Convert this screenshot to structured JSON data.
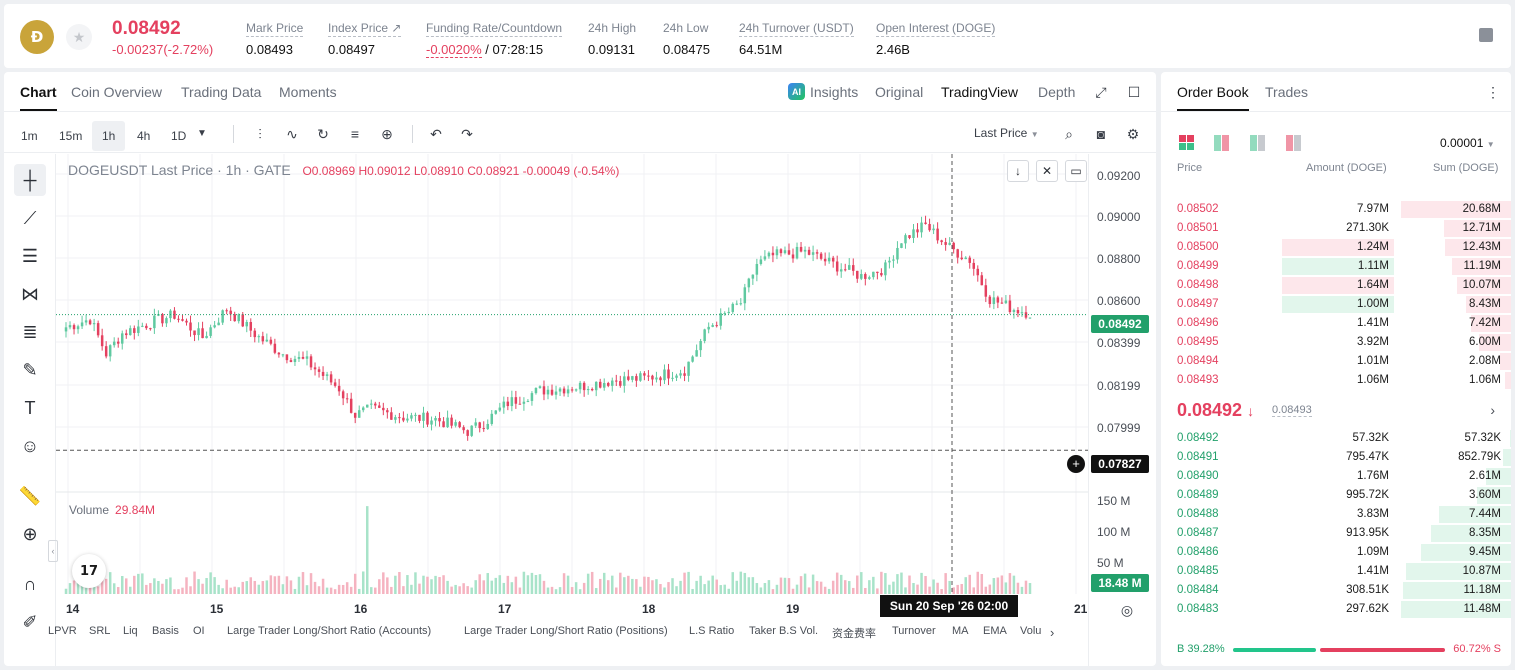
{
  "header": {
    "coin_logo_text": "Ð",
    "last_price": "0.08492",
    "change": "-0.00237(-2.72%)",
    "stats": [
      {
        "label": "Mark Price",
        "value": "0.08493"
      },
      {
        "label": "Index Price ↗",
        "value": "0.08497"
      },
      {
        "label": "Funding Rate/Countdown",
        "value_neg": "-0.0020%",
        "value": " / 07:28:15"
      },
      {
        "label": "24h High",
        "value": "0.09131"
      },
      {
        "label": "24h Low",
        "value": "0.08475"
      },
      {
        "label": "24h Turnover (USDT)",
        "value": "64.51M"
      },
      {
        "label": "Open Interest (DOGE)",
        "value": "2.46B"
      }
    ]
  },
  "chart_tabs": [
    "Chart",
    "Coin Overview",
    "Trading Data",
    "Moments"
  ],
  "chart_right_tabs": {
    "ai_badge": "AI",
    "insights": "Insights",
    "original": "Original",
    "tradingview": "TradingView",
    "depth": "Depth"
  },
  "timeframes": [
    "1m",
    "15m",
    "1h",
    "4h",
    "1D"
  ],
  "selected_timeframe": "1h",
  "price_type": "Last Price",
  "legend": {
    "symbol": "DOGEUSDT Last Price · 1h · GATE",
    "ohlc": "O0.08969 H0.09012 L0.08910 C0.08921 -0.00049 (-0.54%)"
  },
  "volume": {
    "label": "Volume",
    "value": "29.84M"
  },
  "y_ticks": [
    "0.09200",
    "0.09000",
    "0.08800",
    "0.08600",
    "0.08399",
    "0.08199",
    "0.07999"
  ],
  "vol_ticks": [
    "150 M",
    "100 M",
    "50 M"
  ],
  "current_price_tag": "0.08492",
  "crosshair_price_tag": "0.07827",
  "volume_tag": "18.48 M",
  "x_ticks": [
    "14",
    "15",
    "16",
    "17",
    "18",
    "19",
    "21"
  ],
  "crosshair_time": "Sun 20 Sep '26   02:00",
  "indicators": [
    "LPVR",
    "SRL",
    "Liq",
    "Basis",
    "OI",
    "Large Trader Long/Short Ratio (Accounts)",
    "Large Trader Long/Short Ratio (Positions)",
    "L.S Ratio",
    "Taker B.S Vol.",
    "资金费率",
    "Turnover",
    "MA",
    "EMA",
    "Volu"
  ],
  "tv_logo": "17",
  "chart_data": {
    "type": "candlestick",
    "symbol": "DOGEUSDT",
    "interval": "1h",
    "ylim": [
      0.0775,
      0.0922
    ],
    "x_tick_labels": [
      "14",
      "15",
      "16",
      "17",
      "18",
      "19",
      "21"
    ],
    "anchors_close": [
      [
        0,
        0.0843
      ],
      [
        6,
        0.0847
      ],
      [
        10,
        0.083
      ],
      [
        14,
        0.084
      ],
      [
        22,
        0.0846
      ],
      [
        27,
        0.0849
      ],
      [
        34,
        0.0838
      ],
      [
        40,
        0.0852
      ],
      [
        48,
        0.0838
      ],
      [
        54,
        0.083
      ],
      [
        60,
        0.0826
      ],
      [
        68,
        0.0813
      ],
      [
        72,
        0.08
      ],
      [
        76,
        0.0803
      ],
      [
        84,
        0.0799
      ],
      [
        92,
        0.0798
      ],
      [
        100,
        0.0792
      ],
      [
        104,
        0.0796
      ],
      [
        110,
        0.0806
      ],
      [
        118,
        0.0812
      ],
      [
        128,
        0.0814
      ],
      [
        136,
        0.0817
      ],
      [
        144,
        0.0818
      ],
      [
        154,
        0.0822
      ],
      [
        160,
        0.0843
      ],
      [
        168,
        0.0855
      ],
      [
        172,
        0.0874
      ],
      [
        176,
        0.0878
      ],
      [
        184,
        0.088
      ],
      [
        192,
        0.0873
      ],
      [
        198,
        0.0868
      ],
      [
        204,
        0.0872
      ],
      [
        208,
        0.0886
      ],
      [
        214,
        0.0893
      ],
      [
        220,
        0.0882
      ],
      [
        225,
        0.0876
      ],
      [
        230,
        0.0857
      ],
      [
        236,
        0.0852
      ],
      [
        240,
        0.085
      ]
    ],
    "volume_ylim": [
      0,
      160
    ],
    "volume_unit": "M",
    "last_volume": 18.48,
    "volume_spike_index": 75,
    "volume_spike": 148
  },
  "order_book": {
    "tabs": [
      "Order Book",
      "Trades"
    ],
    "precision": "0.00001",
    "headers": {
      "price": "Price",
      "amount": "Amount (DOGE)",
      "sum": "Sum (DOGE)"
    },
    "asks": [
      {
        "price": "0.08502",
        "amount": "7.97M",
        "sum": "20.68M",
        "depth": 1.0
      },
      {
        "price": "0.08501",
        "amount": "271.30K",
        "sum": "12.71M",
        "depth": 0.61
      },
      {
        "price": "0.08500",
        "amount": "1.24M",
        "sum": "12.43M",
        "depth": 0.6,
        "highlight": "red"
      },
      {
        "price": "0.08499",
        "amount": "1.11M",
        "sum": "11.19M",
        "depth": 0.54,
        "highlight": "green"
      },
      {
        "price": "0.08498",
        "amount": "1.64M",
        "sum": "10.07M",
        "depth": 0.49,
        "highlight": "red"
      },
      {
        "price": "0.08497",
        "amount": "1.00M",
        "sum": "8.43M",
        "depth": 0.41,
        "highlight": "green"
      },
      {
        "price": "0.08496",
        "amount": "1.41M",
        "sum": "7.42M",
        "depth": 0.36
      },
      {
        "price": "0.08495",
        "amount": "3.92M",
        "sum": "6.00M",
        "depth": 0.29
      },
      {
        "price": "0.08494",
        "amount": "1.01M",
        "sum": "2.08M",
        "depth": 0.1
      },
      {
        "price": "0.08493",
        "amount": "1.06M",
        "sum": "1.06M",
        "depth": 0.05
      }
    ],
    "mid_price": "0.08492",
    "mid_arrow": "↓",
    "mid_mark": "0.08493",
    "bids": [
      {
        "price": "0.08492",
        "amount": "57.32K",
        "sum": "57.32K",
        "depth": 0.005
      },
      {
        "price": "0.08491",
        "amount": "795.47K",
        "sum": "852.79K",
        "depth": 0.07
      },
      {
        "price": "0.08490",
        "amount": "1.76M",
        "sum": "2.61M",
        "depth": 0.23
      },
      {
        "price": "0.08489",
        "amount": "995.72K",
        "sum": "3.60M",
        "depth": 0.31
      },
      {
        "price": "0.08488",
        "amount": "3.83M",
        "sum": "7.44M",
        "depth": 0.65
      },
      {
        "price": "0.08487",
        "amount": "913.95K",
        "sum": "8.35M",
        "depth": 0.73
      },
      {
        "price": "0.08486",
        "amount": "1.09M",
        "sum": "9.45M",
        "depth": 0.82
      },
      {
        "price": "0.08485",
        "amount": "1.41M",
        "sum": "10.87M",
        "depth": 0.95
      },
      {
        "price": "0.08484",
        "amount": "308.51K",
        "sum": "11.18M",
        "depth": 0.98
      },
      {
        "price": "0.08483",
        "amount": "297.62K",
        "sum": "11.48M",
        "depth": 1.0
      }
    ],
    "buy_ratio_label": "B 39.28%",
    "sell_ratio_label": "60.72% S",
    "buy_ratio": 0.3928
  },
  "colors": {
    "up": "#5fc9a0",
    "down": "#e4405f",
    "up_vol": "#a8e3c9",
    "down_vol": "#f5b3c0"
  }
}
